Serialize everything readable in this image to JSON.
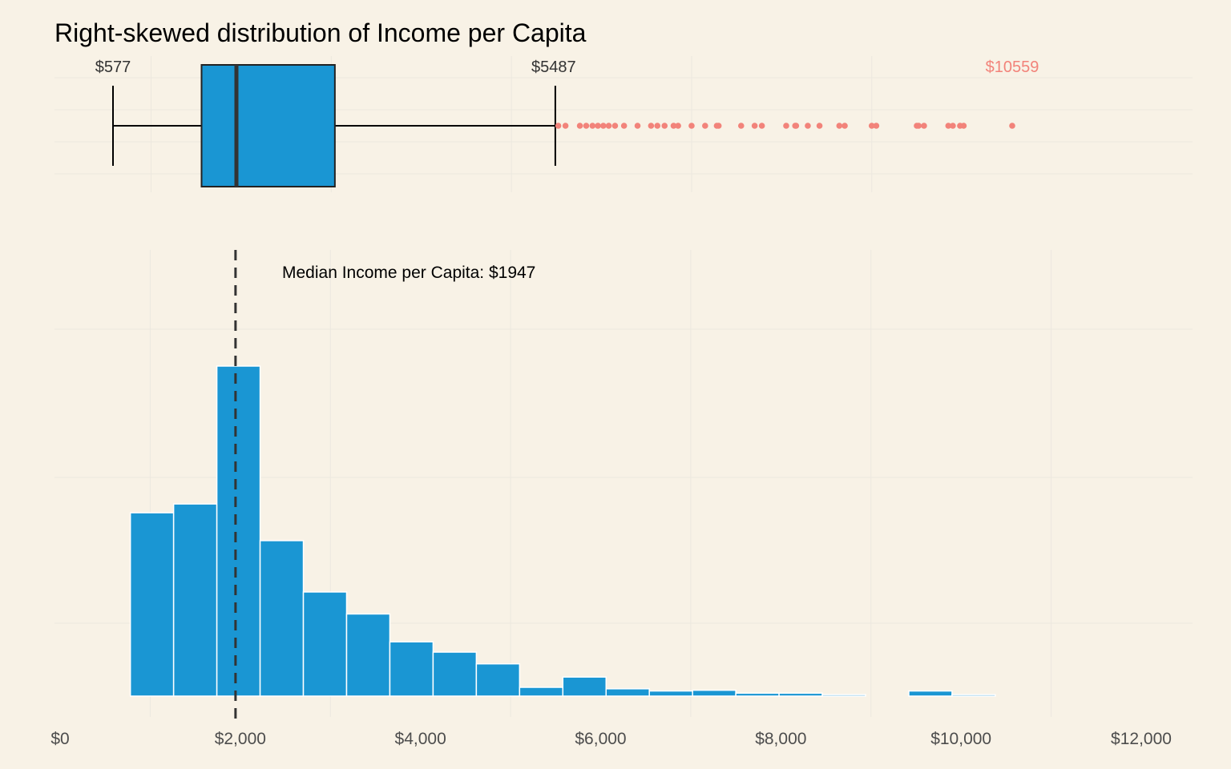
{
  "chart_data": {
    "type": "histogram",
    "title": "Right-skewed distribution of Income per Capita",
    "xlabel": "",
    "ylabel": "",
    "xlim": [
      0,
      12500
    ],
    "x_ticks": [
      0,
      2000,
      4000,
      6000,
      8000,
      10000,
      12000
    ],
    "x_tick_labels": [
      "$0",
      "$2,000",
      "$4,000",
      "$6,000",
      "$8,000",
      "$10,000",
      "$12,000"
    ],
    "grid": true,
    "colors": {
      "background": "#f8f2e6",
      "bar": "#1a96d3",
      "outlier": "#f2837a",
      "grid": "#ece8df",
      "median_line": "#333333"
    },
    "histogram": {
      "bin_width": 480,
      "bin_starts": [
        780,
        1260,
        1740,
        2220,
        2700,
        3180,
        3660,
        4140,
        4620,
        5100,
        5580,
        6060,
        6540,
        7020,
        7500,
        7980,
        8460,
        8940,
        9420,
        9900
      ],
      "counts": [
        125,
        131,
        225,
        106,
        71,
        56,
        37,
        30,
        22,
        6,
        13,
        5,
        3.5,
        4,
        2,
        2,
        1,
        0,
        3.5,
        1
      ]
    },
    "boxplot": {
      "whisker_low": 577,
      "q1": 1560,
      "median": 1947,
      "q3": 3040,
      "whisker_high": 5487,
      "max": 10559,
      "outliers": [
        5520,
        5600,
        5760,
        5830,
        5900,
        5960,
        6020,
        6080,
        6150,
        6250,
        6400,
        6550,
        6620,
        6700,
        6800,
        6850,
        7000,
        7150,
        7280,
        7300,
        7550,
        7700,
        7780,
        8050,
        8150,
        8160,
        8290,
        8420,
        8640,
        8700,
        9000,
        9050,
        9500,
        9520,
        9580,
        9850,
        9900,
        9980,
        10020,
        10559
      ],
      "labels": {
        "whisker_low": "$577",
        "whisker_high": "$5487",
        "max": "$10559"
      }
    },
    "median_annotation": "Median Income per Capita: $1947"
  }
}
